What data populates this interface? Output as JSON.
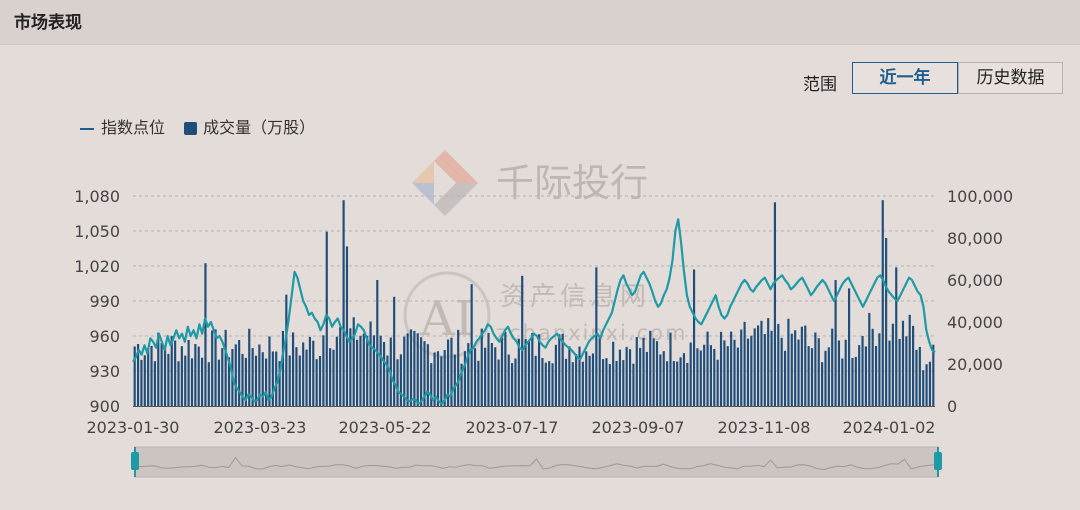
{
  "header": {
    "title": "市场表现"
  },
  "controls": {
    "range_label": "范围",
    "year_button": "近一年",
    "history_button": "历史数据"
  },
  "watermarks": {
    "brand": "千际投行",
    "ai": "AI",
    "cn": "资产信息网",
    "url": "zchanxinxi.com"
  },
  "colors": {
    "line": "#1e9aa6",
    "bars": "#1f4e7a",
    "accent": "#1f5d8c"
  },
  "chart_data": {
    "type": "bar+line",
    "series": [
      {
        "name": "指数点位",
        "type": "line",
        "axis": "left"
      },
      {
        "name": "成交量（万股）",
        "type": "bar",
        "axis": "right"
      }
    ],
    "x_ticks": [
      "2023-01-30",
      "2023-03-23",
      "2023-05-22",
      "2023-07-17",
      "2023-09-07",
      "2023-11-08",
      "2024-01-02"
    ],
    "left_axis": {
      "ticks": [
        "900",
        "930",
        "960",
        "990",
        "1,020",
        "1,050",
        "1,080"
      ],
      "range": [
        900,
        1080
      ]
    },
    "right_axis": {
      "ticks": [
        "0",
        "20,000",
        "40,000",
        "60,000",
        "80,000",
        "100,000"
      ],
      "range": [
        0,
        100000
      ]
    },
    "grid": "dashed horizontal",
    "legend": "top-left",
    "index_values": [
      938,
      942,
      948,
      944,
      952,
      945,
      958,
      955,
      950,
      962,
      955,
      948,
      960,
      952,
      958,
      965,
      958,
      962,
      955,
      968,
      960,
      965,
      958,
      970,
      962,
      975,
      968,
      972,
      965,
      958,
      960,
      955,
      948,
      940,
      932,
      920,
      915,
      912,
      908,
      905,
      910,
      908,
      904,
      905,
      910,
      908,
      912,
      905,
      908,
      915,
      920,
      930,
      945,
      958,
      975,
      995,
      1015,
      1010,
      1000,
      990,
      985,
      978,
      980,
      975,
      972,
      965,
      970,
      978,
      975,
      968,
      972,
      975,
      968,
      965,
      960,
      955,
      958,
      962,
      970,
      968,
      965,
      958,
      952,
      950,
      948,
      945,
      942,
      938,
      935,
      930,
      922,
      918,
      912,
      910,
      908,
      905,
      904,
      906,
      905,
      902,
      904,
      908,
      912,
      910,
      905,
      908,
      904,
      902,
      905,
      910,
      908,
      915,
      918,
      922,
      930,
      935,
      942,
      948,
      950,
      955,
      958,
      962,
      965,
      970,
      968,
      962,
      958,
      955,
      960,
      965,
      968,
      962,
      958,
      955,
      950,
      948,
      952,
      955,
      958,
      962,
      960,
      955,
      952,
      950,
      955,
      958,
      960,
      962,
      958,
      955,
      952,
      950,
      948,
      945,
      942,
      940,
      945,
      950,
      955,
      958,
      960,
      962,
      958,
      965,
      970,
      975,
      980,
      990,
      1000,
      1008,
      1012,
      1005,
      1000,
      995,
      998,
      1005,
      1012,
      1015,
      1010,
      1005,
      998,
      990,
      985,
      988,
      995,
      1000,
      1010,
      1025,
      1050,
      1060,
      1040,
      1015,
      995,
      985,
      980,
      975,
      972,
      970,
      975,
      980,
      985,
      990,
      995,
      985,
      978,
      975,
      978,
      985,
      990,
      995,
      1000,
      1005,
      1008,
      1005,
      1000,
      998,
      1002,
      1005,
      1008,
      1010,
      1005,
      1000,
      1005,
      1008,
      1010,
      1012,
      1008,
      1005,
      1000,
      1002,
      1005,
      1008,
      1010,
      1005,
      1000,
      995,
      998,
      1002,
      1005,
      1008,
      1005,
      1000,
      995,
      990,
      995,
      1000,
      1005,
      1008,
      1010,
      1005,
      1000,
      995,
      990,
      985,
      990,
      995,
      1000,
      1005,
      1010,
      1012,
      1008,
      1002,
      998,
      995,
      992,
      990,
      995,
      1000,
      1005,
      1010,
      1008,
      1003,
      998,
      995,
      985,
      965,
      955,
      948,
      946
    ]
  }
}
